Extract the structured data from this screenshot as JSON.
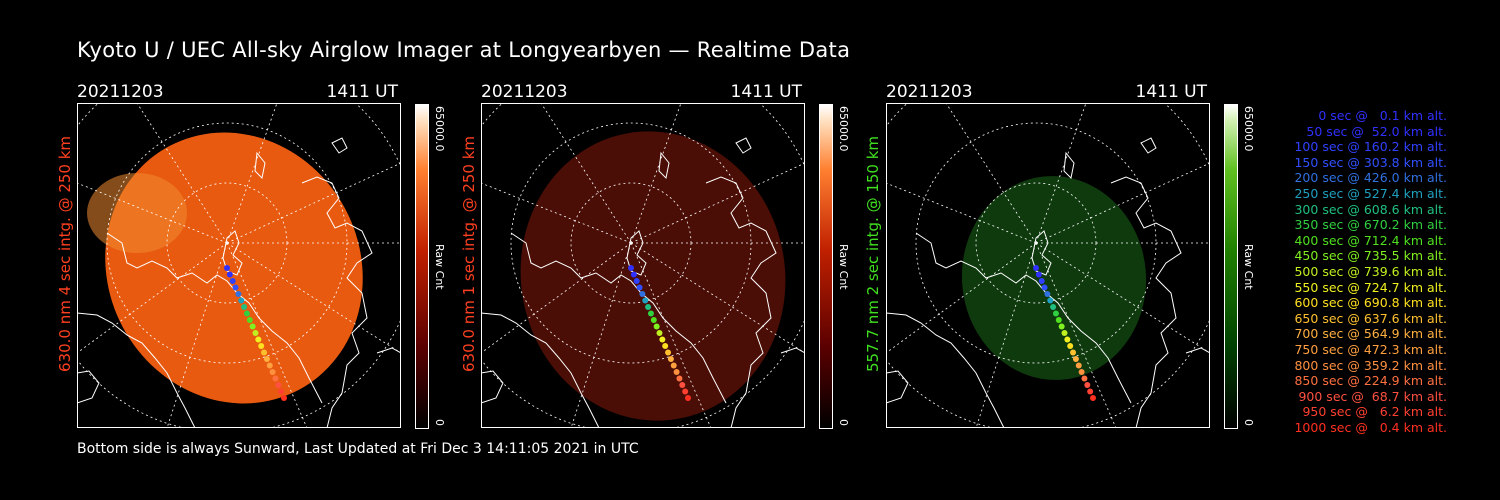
{
  "title": "Kyoto U / UEC All-sky Airglow Imager at Longyearbyen — Realtime Data",
  "footer": "Bottom side is always Sunward, Last Updated at Fri Dec  3 14:11:05 2021 in UTC",
  "panels": [
    {
      "date": "20211203",
      "time": "1411 UT",
      "label": "630.0 nm 4 sec intg. @ 250 km",
      "label_color": "#ff4020",
      "cb_max": "65000.0",
      "cb_min": "0",
      "cb_title": "Raw Cnt",
      "image_color": "#e85a10"
    },
    {
      "date": "20211203",
      "time": "1411 UT",
      "label": "630.0 nm 1 sec intg. @ 250 km",
      "label_color": "#ff4020",
      "cb_max": "65000.0",
      "cb_min": "0",
      "cb_title": "Raw Cnt",
      "image_color": "#4a0e06"
    },
    {
      "date": "20211203",
      "time": "1411 UT",
      "label": "557.7 nm 2 sec intg. @ 150 km",
      "label_color": "#40e020",
      "cb_max": "65000.0",
      "cb_min": "0",
      "cb_title": "Raw Cnt",
      "image_color": "#0e3a0e"
    }
  ],
  "legend": [
    {
      "text": "0 sec @   0.1 km alt.",
      "color": "#3030ff"
    },
    {
      "text": "50 sec @  52.0 km alt.",
      "color": "#3030ff"
    },
    {
      "text": "100 sec @ 160.2 km alt.",
      "color": "#3040ff"
    },
    {
      "text": "150 sec @ 303.8 km alt.",
      "color": "#3050ff"
    },
    {
      "text": "200 sec @ 426.0 km alt.",
      "color": "#3070e0"
    },
    {
      "text": "250 sec @ 527.4 km alt.",
      "color": "#20a0c0"
    },
    {
      "text": "300 sec @ 608.6 km alt.",
      "color": "#20c080"
    },
    {
      "text": "350 sec @ 670.2 km alt.",
      "color": "#30d040"
    },
    {
      "text": "400 sec @ 712.4 km alt.",
      "color": "#50e020"
    },
    {
      "text": "450 sec @ 735.5 km alt.",
      "color": "#80f020"
    },
    {
      "text": "500 sec @ 739.6 km alt.",
      "color": "#c0f020"
    },
    {
      "text": "550 sec @ 724.7 km alt.",
      "color": "#f0f020"
    },
    {
      "text": "600 sec @ 690.8 km alt.",
      "color": "#ffe020"
    },
    {
      "text": "650 sec @ 637.6 km alt.",
      "color": "#ffc030"
    },
    {
      "text": "700 sec @ 564.9 km alt.",
      "color": "#ffb040"
    },
    {
      "text": "750 sec @ 472.3 km alt.",
      "color": "#ffa040"
    },
    {
      "text": "800 sec @ 359.2 km alt.",
      "color": "#ff9040"
    },
    {
      "text": "850 sec @ 224.9 km alt.",
      "color": "#ff7040"
    },
    {
      "text": "900 sec @  68.7 km alt.",
      "color": "#ff5040"
    },
    {
      "text": "950 sec @   6.2 km alt.",
      "color": "#ff4030"
    },
    {
      "text": "1000 sec @   0.4 km alt.",
      "color": "#ff3020"
    }
  ]
}
